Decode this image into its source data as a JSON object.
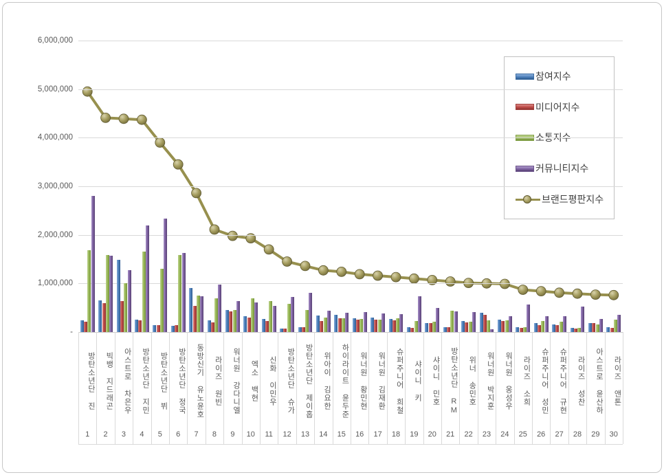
{
  "chart_data": {
    "type": "bar+line",
    "title": "",
    "categories": [
      "방탄소년단 진",
      "빅뱅 지드래곤",
      "아스트로 차은우",
      "방탄소년단 지민",
      "방탄소년단 뷔",
      "방탄소년단 정국",
      "동방신기 유노윤호",
      "라이즈 원빈",
      "워너원 강다니엘",
      "엑소 백현",
      "신화 이민우",
      "방탄소년단 슈가",
      "방탄소년단 제이홉",
      "위아이 김요한",
      "하이라이트 윤두준",
      "워너원 황민현",
      "워너원 김재환",
      "슈퍼주니어 희철",
      "샤이니 키",
      "샤이니 민호",
      "방탄소년단 RM",
      "위너 송민호",
      "워너원 박지훈",
      "워너원 옹성우",
      "라이즈 소희",
      "슈퍼주니어 성민",
      "슈퍼주니어 규현",
      "라이즈 성찬",
      "아스트로 윤산하",
      "라이즈 앤톤"
    ],
    "rank_labels": [
      "1",
      "2",
      "3",
      "4",
      "5",
      "6",
      "7",
      "8",
      "9",
      "10",
      "11",
      "12",
      "13",
      "14",
      "15",
      "16",
      "17",
      "18",
      "19",
      "20",
      "21",
      "22",
      "23",
      "24",
      "25",
      "26",
      "27",
      "28",
      "29",
      "30"
    ],
    "series": [
      {
        "name": "참여지수",
        "type": "bar",
        "color": "#4e81bc",
        "values": [
          240000,
          650000,
          1480000,
          250000,
          140000,
          130000,
          900000,
          240000,
          450000,
          320000,
          270000,
          70000,
          100000,
          340000,
          350000,
          290000,
          300000,
          270000,
          100000,
          190000,
          100000,
          220000,
          400000,
          250000,
          100000,
          190000,
          160000,
          80000,
          190000,
          100000
        ]
      },
      {
        "name": "미디어지수",
        "type": "bar",
        "color": "#bf4b48",
        "values": [
          210000,
          590000,
          640000,
          240000,
          140000,
          140000,
          540000,
          200000,
          420000,
          300000,
          230000,
          70000,
          100000,
          220000,
          280000,
          260000,
          250000,
          240000,
          80000,
          180000,
          100000,
          200000,
          350000,
          220000,
          90000,
          140000,
          140000,
          70000,
          180000,
          80000
        ]
      },
      {
        "name": "소통지수",
        "type": "bar",
        "color": "#9aba58",
        "values": [
          1680000,
          1580000,
          1010000,
          1650000,
          1300000,
          1580000,
          750000,
          690000,
          450000,
          700000,
          630000,
          580000,
          450000,
          300000,
          280000,
          270000,
          260000,
          290000,
          220000,
          210000,
          440000,
          210000,
          240000,
          240000,
          100000,
          220000,
          210000,
          80000,
          160000,
          260000
        ]
      },
      {
        "name": "커뮤니티지수",
        "type": "bar",
        "color": "#7f63a2",
        "values": [
          2800000,
          1570000,
          1280000,
          2190000,
          2330000,
          1630000,
          730000,
          980000,
          640000,
          610000,
          540000,
          720000,
          810000,
          440000,
          390000,
          410000,
          380000,
          370000,
          740000,
          500000,
          430000,
          410000,
          60000,
          320000,
          560000,
          320000,
          330000,
          520000,
          270000,
          350000
        ]
      },
      {
        "name": "브랜드평판지수",
        "type": "line",
        "color": "#97904e",
        "values": [
          4950000,
          4410000,
          4390000,
          4370000,
          3900000,
          3450000,
          2860000,
          2110000,
          1980000,
          1930000,
          1700000,
          1450000,
          1360000,
          1270000,
          1240000,
          1190000,
          1160000,
          1130000,
          1100000,
          1070000,
          1040000,
          1010000,
          1000000,
          990000,
          870000,
          840000,
          810000,
          790000,
          770000,
          760000
        ]
      }
    ],
    "ylim": [
      0,
      6000000
    ],
    "y_ticks": [
      "-",
      "1,000,000",
      "2,000,000",
      "3,000,000",
      "4,000,000",
      "5,000,000",
      "6,000,000"
    ],
    "grid": true,
    "legend_position": "upper-right"
  }
}
